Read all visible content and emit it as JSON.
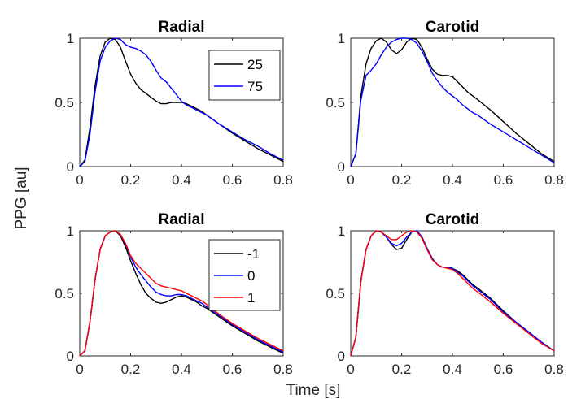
{
  "figure": {
    "ylabel": "PPG [au]",
    "xlabel": "Time [s]"
  },
  "chart_data": [
    {
      "type": "line",
      "title": "Radial",
      "xlim": [
        0,
        0.8
      ],
      "ylim": [
        0,
        1
      ],
      "xticks": [
        "0",
        "0.2",
        "0.4",
        "0.6",
        "0.8"
      ],
      "yticks": [
        "0",
        "0.5",
        "1"
      ],
      "legend": "top-right",
      "series": [
        {
          "name": "25",
          "color": "#000000",
          "x": [
            0,
            0.02,
            0.04,
            0.06,
            0.08,
            0.1,
            0.12,
            0.14,
            0.16,
            0.18,
            0.2,
            0.22,
            0.24,
            0.26,
            0.28,
            0.3,
            0.32,
            0.34,
            0.36,
            0.38,
            0.4,
            0.42,
            0.44,
            0.46,
            0.48,
            0.5,
            0.55,
            0.6,
            0.65,
            0.7,
            0.75,
            0.8
          ],
          "y": [
            0,
            0.05,
            0.3,
            0.63,
            0.86,
            0.97,
            1.0,
            0.99,
            0.93,
            0.82,
            0.72,
            0.65,
            0.6,
            0.57,
            0.54,
            0.51,
            0.49,
            0.49,
            0.5,
            0.5,
            0.5,
            0.49,
            0.47,
            0.45,
            0.43,
            0.4,
            0.33,
            0.26,
            0.2,
            0.14,
            0.09,
            0.04
          ]
        },
        {
          "name": "75",
          "color": "#0000ff",
          "x": [
            0,
            0.02,
            0.04,
            0.06,
            0.08,
            0.1,
            0.12,
            0.14,
            0.16,
            0.18,
            0.2,
            0.22,
            0.24,
            0.26,
            0.28,
            0.3,
            0.32,
            0.34,
            0.36,
            0.38,
            0.4,
            0.42,
            0.44,
            0.46,
            0.48,
            0.5,
            0.55,
            0.6,
            0.65,
            0.7,
            0.75,
            0.8
          ],
          "y": [
            0,
            0.04,
            0.25,
            0.58,
            0.82,
            0.93,
            0.98,
            1.0,
            0.99,
            0.95,
            0.93,
            0.92,
            0.9,
            0.87,
            0.82,
            0.75,
            0.69,
            0.66,
            0.61,
            0.56,
            0.51,
            0.48,
            0.46,
            0.44,
            0.42,
            0.4,
            0.33,
            0.27,
            0.21,
            0.16,
            0.1,
            0.05
          ]
        }
      ]
    },
    {
      "type": "line",
      "title": "Carotid",
      "xlim": [
        0,
        0.8
      ],
      "ylim": [
        0,
        1
      ],
      "xticks": [
        "0",
        "0.2",
        "0.4",
        "0.6",
        "0.8"
      ],
      "yticks": [
        "0",
        "0.5",
        "1"
      ],
      "series": [
        {
          "name": "25",
          "color": "#000000",
          "x": [
            0,
            0.02,
            0.04,
            0.06,
            0.08,
            0.1,
            0.12,
            0.14,
            0.16,
            0.18,
            0.2,
            0.22,
            0.24,
            0.26,
            0.28,
            0.3,
            0.32,
            0.34,
            0.36,
            0.38,
            0.4,
            0.42,
            0.44,
            0.46,
            0.48,
            0.5,
            0.55,
            0.6,
            0.65,
            0.7,
            0.75,
            0.8
          ],
          "y": [
            0,
            0.1,
            0.55,
            0.8,
            0.92,
            0.98,
            1.0,
            0.97,
            0.91,
            0.88,
            0.91,
            0.97,
            1.0,
            0.99,
            0.93,
            0.84,
            0.76,
            0.72,
            0.71,
            0.71,
            0.7,
            0.66,
            0.62,
            0.58,
            0.55,
            0.52,
            0.44,
            0.35,
            0.26,
            0.18,
            0.1,
            0.04
          ]
        },
        {
          "name": "75",
          "color": "#0000ff",
          "x": [
            0,
            0.02,
            0.04,
            0.06,
            0.08,
            0.1,
            0.12,
            0.14,
            0.16,
            0.18,
            0.2,
            0.22,
            0.24,
            0.26,
            0.28,
            0.3,
            0.32,
            0.34,
            0.36,
            0.38,
            0.4,
            0.42,
            0.44,
            0.46,
            0.48,
            0.5,
            0.55,
            0.6,
            0.65,
            0.7,
            0.75,
            0.8
          ],
          "y": [
            0,
            0.1,
            0.52,
            0.71,
            0.75,
            0.8,
            0.87,
            0.93,
            0.97,
            0.99,
            1.0,
            1.0,
            0.99,
            0.96,
            0.9,
            0.82,
            0.73,
            0.67,
            0.62,
            0.58,
            0.55,
            0.52,
            0.48,
            0.45,
            0.42,
            0.4,
            0.33,
            0.27,
            0.21,
            0.15,
            0.09,
            0.03
          ]
        }
      ]
    },
    {
      "type": "line",
      "title": "Radial",
      "xlim": [
        0,
        0.8
      ],
      "ylim": [
        0,
        1
      ],
      "xticks": [
        "0",
        "0.2",
        "0.4",
        "0.6",
        "0.8"
      ],
      "yticks": [
        "0",
        "0.5",
        "1"
      ],
      "legend": "top-right",
      "series": [
        {
          "name": "-1",
          "color": "#000000",
          "x": [
            0,
            0.02,
            0.04,
            0.06,
            0.08,
            0.1,
            0.12,
            0.14,
            0.16,
            0.18,
            0.2,
            0.22,
            0.24,
            0.26,
            0.28,
            0.3,
            0.32,
            0.34,
            0.36,
            0.38,
            0.4,
            0.42,
            0.44,
            0.46,
            0.48,
            0.5,
            0.55,
            0.6,
            0.65,
            0.7,
            0.75,
            0.8
          ],
          "y": [
            0,
            0.04,
            0.27,
            0.61,
            0.85,
            0.96,
            0.99,
            1.0,
            0.96,
            0.87,
            0.76,
            0.66,
            0.57,
            0.5,
            0.46,
            0.43,
            0.42,
            0.43,
            0.45,
            0.47,
            0.48,
            0.47,
            0.45,
            0.43,
            0.4,
            0.38,
            0.31,
            0.24,
            0.18,
            0.12,
            0.07,
            0.02
          ]
        },
        {
          "name": "0",
          "color": "#0000ff",
          "x": [
            0,
            0.02,
            0.04,
            0.06,
            0.08,
            0.1,
            0.12,
            0.14,
            0.16,
            0.18,
            0.2,
            0.22,
            0.24,
            0.26,
            0.28,
            0.3,
            0.32,
            0.34,
            0.36,
            0.38,
            0.4,
            0.42,
            0.44,
            0.46,
            0.48,
            0.5,
            0.55,
            0.6,
            0.65,
            0.7,
            0.75,
            0.8
          ],
          "y": [
            0,
            0.04,
            0.27,
            0.61,
            0.85,
            0.96,
            0.99,
            1.0,
            0.97,
            0.89,
            0.79,
            0.71,
            0.65,
            0.6,
            0.55,
            0.51,
            0.49,
            0.48,
            0.48,
            0.49,
            0.49,
            0.48,
            0.46,
            0.44,
            0.42,
            0.39,
            0.32,
            0.25,
            0.19,
            0.13,
            0.08,
            0.03
          ]
        },
        {
          "name": "1",
          "color": "#ff0000",
          "x": [
            0,
            0.02,
            0.04,
            0.06,
            0.08,
            0.1,
            0.12,
            0.14,
            0.16,
            0.18,
            0.2,
            0.22,
            0.24,
            0.26,
            0.28,
            0.3,
            0.32,
            0.34,
            0.36,
            0.38,
            0.4,
            0.42,
            0.44,
            0.46,
            0.48,
            0.5,
            0.55,
            0.6,
            0.65,
            0.7,
            0.75,
            0.8
          ],
          "y": [
            0,
            0.04,
            0.27,
            0.61,
            0.85,
            0.96,
            0.99,
            1.0,
            0.97,
            0.9,
            0.8,
            0.74,
            0.7,
            0.66,
            0.62,
            0.58,
            0.56,
            0.55,
            0.54,
            0.53,
            0.52,
            0.5,
            0.48,
            0.46,
            0.44,
            0.41,
            0.33,
            0.26,
            0.2,
            0.14,
            0.09,
            0.04
          ]
        }
      ]
    },
    {
      "type": "line",
      "title": "Carotid",
      "xlim": [
        0,
        0.8
      ],
      "ylim": [
        0,
        1
      ],
      "xticks": [
        "0",
        "0.2",
        "0.4",
        "0.6",
        "0.8"
      ],
      "yticks": [
        "0",
        "0.5",
        "1"
      ],
      "series": [
        {
          "name": "-1",
          "color": "#000000",
          "x": [
            0,
            0.02,
            0.04,
            0.06,
            0.08,
            0.1,
            0.12,
            0.14,
            0.16,
            0.18,
            0.2,
            0.22,
            0.24,
            0.26,
            0.28,
            0.3,
            0.32,
            0.34,
            0.36,
            0.38,
            0.4,
            0.42,
            0.44,
            0.46,
            0.48,
            0.5,
            0.55,
            0.6,
            0.65,
            0.7,
            0.75,
            0.8
          ],
          "y": [
            0,
            0.15,
            0.6,
            0.85,
            0.96,
            1.0,
            0.99,
            0.95,
            0.89,
            0.85,
            0.86,
            0.93,
            0.99,
            1.0,
            0.95,
            0.86,
            0.78,
            0.73,
            0.71,
            0.71,
            0.7,
            0.68,
            0.65,
            0.61,
            0.57,
            0.54,
            0.46,
            0.36,
            0.27,
            0.19,
            0.11,
            0.04
          ]
        },
        {
          "name": "0",
          "color": "#0000ff",
          "x": [
            0,
            0.02,
            0.04,
            0.06,
            0.08,
            0.1,
            0.12,
            0.14,
            0.16,
            0.18,
            0.2,
            0.22,
            0.24,
            0.26,
            0.28,
            0.3,
            0.32,
            0.34,
            0.36,
            0.38,
            0.4,
            0.42,
            0.44,
            0.46,
            0.48,
            0.5,
            0.55,
            0.6,
            0.65,
            0.7,
            0.75,
            0.8
          ],
          "y": [
            0,
            0.15,
            0.6,
            0.85,
            0.96,
            1.0,
            0.99,
            0.95,
            0.9,
            0.88,
            0.9,
            0.95,
            0.99,
            1.0,
            0.95,
            0.86,
            0.78,
            0.73,
            0.71,
            0.71,
            0.7,
            0.67,
            0.64,
            0.6,
            0.56,
            0.53,
            0.45,
            0.35,
            0.27,
            0.19,
            0.11,
            0.04
          ]
        },
        {
          "name": "1",
          "color": "#ff0000",
          "x": [
            0,
            0.02,
            0.04,
            0.06,
            0.08,
            0.1,
            0.12,
            0.14,
            0.16,
            0.18,
            0.2,
            0.22,
            0.24,
            0.26,
            0.28,
            0.3,
            0.32,
            0.34,
            0.36,
            0.38,
            0.4,
            0.42,
            0.44,
            0.46,
            0.48,
            0.5,
            0.55,
            0.6,
            0.65,
            0.7,
            0.75,
            0.8
          ],
          "y": [
            0,
            0.15,
            0.6,
            0.85,
            0.96,
            1.0,
            0.99,
            0.96,
            0.93,
            0.93,
            0.96,
            0.99,
            1.0,
            0.99,
            0.94,
            0.85,
            0.77,
            0.73,
            0.71,
            0.7,
            0.69,
            0.66,
            0.62,
            0.58,
            0.54,
            0.51,
            0.43,
            0.34,
            0.26,
            0.18,
            0.1,
            0.04
          ]
        }
      ]
    }
  ]
}
